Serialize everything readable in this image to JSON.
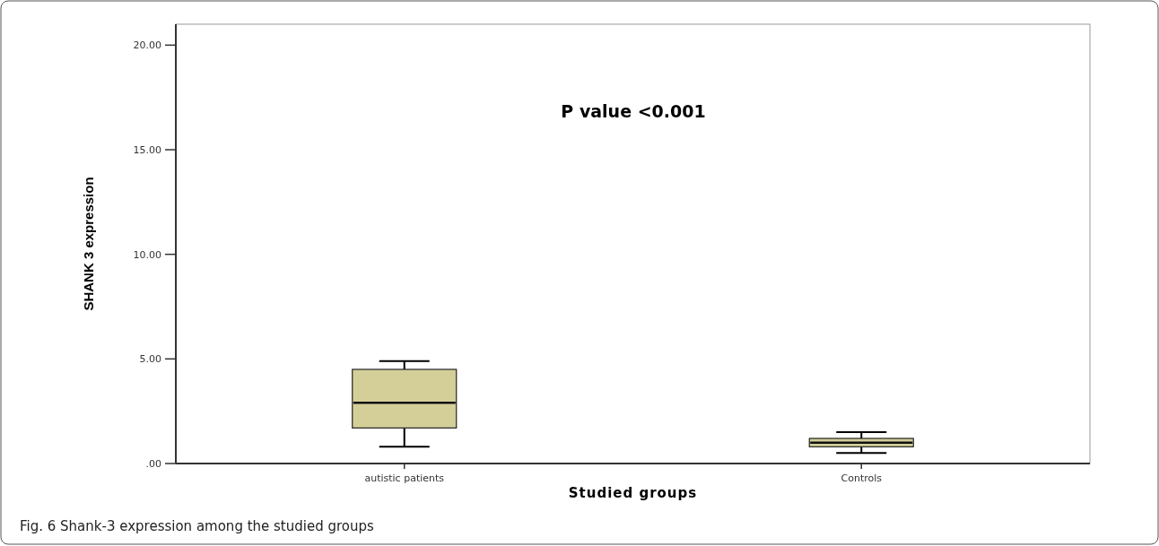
{
  "chart_data": {
    "type": "box",
    "xlabel": "Studied groups",
    "ylabel": "SHANK 3 expression",
    "categories": [
      "autistic patients",
      "Controls"
    ],
    "boxes": [
      {
        "low": 0.8,
        "q1": 1.7,
        "median": 2.9,
        "q3": 4.5,
        "high": 4.9
      },
      {
        "low": 0.5,
        "q1": 0.8,
        "median": 1.0,
        "q3": 1.2,
        "high": 1.5
      }
    ],
    "color": "#d4cf98",
    "ylim": [
      0,
      21
    ],
    "yticks": [
      {
        "value": 0,
        "label": ".00"
      },
      {
        "value": 5,
        "label": "5.00"
      },
      {
        "value": 10,
        "label": "10.00"
      },
      {
        "value": 15,
        "label": "15.00"
      },
      {
        "value": 20,
        "label": "20.00"
      }
    ],
    "grid": false,
    "annotations": [
      {
        "text": "P value <0.001"
      },
      "Fig. 6 Shank-3 expression among the studied groups"
    ]
  }
}
